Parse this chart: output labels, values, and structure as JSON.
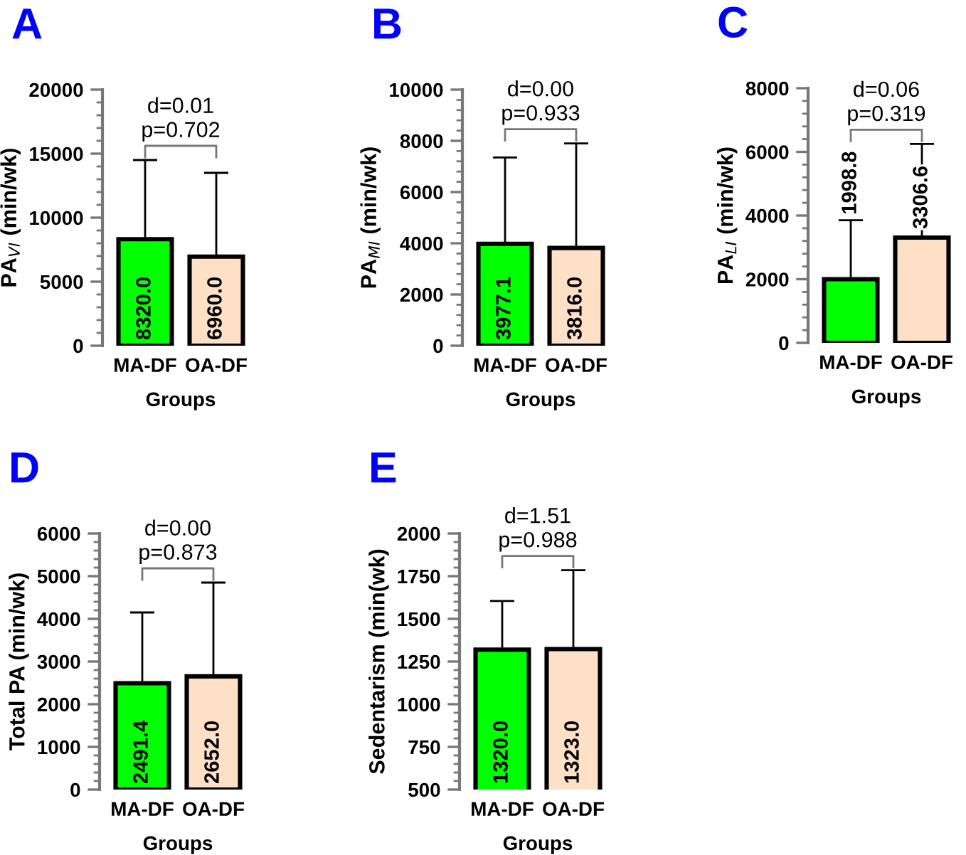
{
  "chart_data": [
    {
      "type": "bar",
      "title": "A",
      "xlabel": "Groups",
      "ylabel": "PA$_{VI}$ (min/wk)",
      "categories": [
        "MA-DF",
        "OA-DF"
      ],
      "colors": [
        "#00ff00",
        "#fde0c5"
      ],
      "values": [
        8320.0,
        6960.0
      ],
      "errors": [
        [
          8320.0,
          14500
        ],
        [
          6960.0,
          13500
        ]
      ],
      "value_labels": [
        "8320.0",
        "6960.0"
      ],
      "ylim": [
        0,
        20000
      ],
      "yticks": [
        0,
        5000,
        10000,
        15000,
        20000
      ],
      "annotations": [
        "d=0.01",
        "p=0.702"
      ],
      "grid": false
    },
    {
      "type": "bar",
      "title": "B",
      "xlabel": "Groups",
      "ylabel": "PA$_{MI}$ (min/wk)",
      "categories": [
        "MA-DF",
        "OA-DF"
      ],
      "colors": [
        "#00ff00",
        "#fde0c5"
      ],
      "values": [
        3977.1,
        3816.0
      ],
      "errors": [
        [
          3977.1,
          7350
        ],
        [
          3816.0,
          7900
        ]
      ],
      "value_labels": [
        "3977.1",
        "3816.0"
      ],
      "ylim": [
        0,
        10000
      ],
      "yticks": [
        0,
        2000,
        4000,
        6000,
        8000,
        10000
      ],
      "annotations": [
        "d=0.00",
        "p=0.933"
      ],
      "grid": false
    },
    {
      "type": "bar",
      "title": "C",
      "xlabel": "Groups",
      "ylabel": "PA$_{LI}$ (min/wk)",
      "categories": [
        "MA-DF",
        "OA-DF"
      ],
      "colors": [
        "#00ff00",
        "#fde0c5"
      ],
      "values": [
        1998.8,
        3306.6
      ],
      "errors": [
        [
          1998.8,
          3850
        ],
        [
          3306.6,
          6250
        ]
      ],
      "value_labels": [
        "1998.8",
        "3306.6"
      ],
      "ylim": [
        0,
        8000
      ],
      "yticks": [
        0,
        2000,
        4000,
        6000,
        8000
      ],
      "annotations": [
        "d=0.06",
        "p=0.319"
      ],
      "grid": false
    },
    {
      "type": "bar",
      "title": "D",
      "xlabel": "Groups",
      "ylabel": "Total PA (min/wk)",
      "categories": [
        "MA-DF",
        "OA-DF"
      ],
      "colors": [
        "#00ff00",
        "#fde0c5"
      ],
      "values": [
        2491.4,
        2652.0
      ],
      "errors": [
        [
          2491.4,
          4150
        ],
        [
          2652.0,
          4850
        ]
      ],
      "value_labels": [
        "2491.4",
        "2652.0"
      ],
      "ylim": [
        0,
        6000
      ],
      "yticks": [
        0,
        1000,
        2000,
        3000,
        4000,
        5000,
        6000
      ],
      "annotations": [
        "d=0.00",
        "p=0.873"
      ],
      "grid": false
    },
    {
      "type": "bar",
      "title": "E",
      "xlabel": "Groups",
      "ylabel": "Sedentarism (min(wk)",
      "categories": [
        "MA-DF",
        "OA-DF"
      ],
      "colors": [
        "#00ff00",
        "#fde0c5"
      ],
      "values": [
        1320.0,
        1323.0
      ],
      "errors": [
        [
          1320.0,
          1605
        ],
        [
          1323.0,
          1785
        ]
      ],
      "value_labels": [
        "1320.0",
        "1323.0"
      ],
      "ylim": [
        500,
        2000
      ],
      "yticks": [
        500,
        750,
        1000,
        1250,
        1500,
        1750,
        2000
      ],
      "annotations": [
        "d=1.51",
        "p=0.988"
      ],
      "grid": false
    }
  ]
}
